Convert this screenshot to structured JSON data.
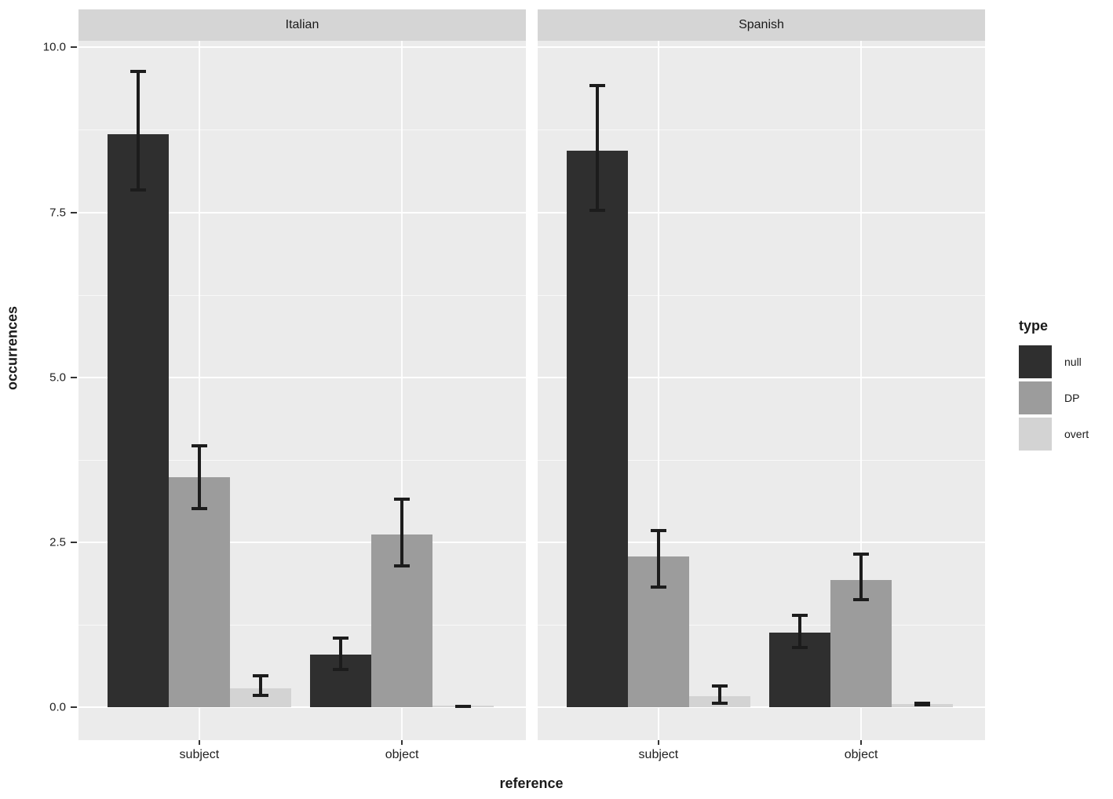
{
  "chart_data": {
    "type": "bar",
    "title": "",
    "xlabel": "reference",
    "ylabel": "occurrences",
    "categories": [
      "subject",
      "object"
    ],
    "series_names": [
      "null",
      "DP",
      "overt"
    ],
    "yticks": [
      {
        "label": "0.0",
        "value": 0
      },
      {
        "label": "2.5",
        "value": 2.5
      },
      {
        "label": "5.0",
        "value": 5
      },
      {
        "label": "7.5",
        "value": 7.5
      },
      {
        "label": "10.0",
        "value": 10
      }
    ],
    "ylim": [
      -0.5,
      10.1
    ],
    "grid": "on",
    "legend": {
      "title": "type",
      "position": "right",
      "entries": [
        {
          "label": "null",
          "color": "#2f2f2f"
        },
        {
          "label": "DP",
          "color": "#9c9c9c"
        },
        {
          "label": "overt",
          "color": "#d3d3d3"
        }
      ]
    },
    "facets": [
      {
        "label": "Italian",
        "series": [
          {
            "name": "null",
            "values": [
              8.68,
              0.8
            ],
            "err_low": [
              7.81,
              0.55
            ],
            "err_high": [
              9.66,
              1.07
            ]
          },
          {
            "name": "DP",
            "values": [
              3.48,
              2.62
            ],
            "err_low": [
              2.99,
              2.12
            ],
            "err_high": [
              3.99,
              3.18
            ]
          },
          {
            "name": "overt",
            "values": [
              0.29,
              0.02
            ],
            "err_low": [
              0.15,
              0.0
            ],
            "err_high": [
              0.5,
              0.04
            ]
          }
        ]
      },
      {
        "label": "Spanish",
        "series": [
          {
            "name": "null",
            "values": [
              8.43,
              1.13
            ],
            "err_low": [
              7.51,
              0.88
            ],
            "err_high": [
              9.45,
              1.41
            ]
          },
          {
            "name": "DP",
            "values": [
              2.28,
              1.93
            ],
            "err_low": [
              1.8,
              1.6
            ],
            "err_high": [
              2.7,
              2.34
            ]
          },
          {
            "name": "overt",
            "values": [
              0.17,
              0.05
            ],
            "err_low": [
              0.04,
              0.01
            ],
            "err_high": [
              0.35,
              0.08
            ]
          }
        ]
      }
    ],
    "colors": {
      "null": "#2f2f2f",
      "DP": "#9c9c9c",
      "overt": "#d3d3d3",
      "panel_bg": "#ebebeb",
      "strip_bg": "#d5d5d5",
      "grid": "#ffffff",
      "error_bar": "#1c1c1c",
      "text": "#1a1a1a",
      "background": "#ffffff"
    }
  }
}
